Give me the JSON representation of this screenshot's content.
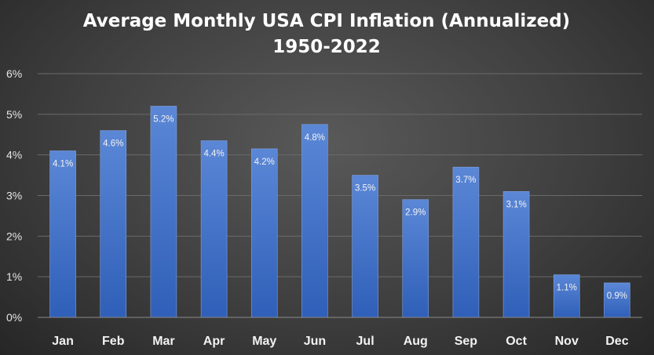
{
  "chart_data": {
    "type": "bar",
    "title": "Average Monthly USA CPI Inflation (Annualized)",
    "subtitle": "1950-2022",
    "categories": [
      "Jan",
      "Feb",
      "Mar",
      "Apr",
      "May",
      "Jun",
      "Jul",
      "Aug",
      "Sep",
      "Oct",
      "Nov",
      "Dec"
    ],
    "values": [
      4.1,
      4.6,
      5.2,
      4.35,
      4.15,
      4.75,
      3.5,
      2.9,
      3.7,
      3.1,
      1.05,
      0.85
    ],
    "data_labels": [
      "4.1%",
      "4.6%",
      "5.2%",
      "4.4%",
      "4.2%",
      "4.8%",
      "3.5%",
      "2.9%",
      "3.7%",
      "3.1%",
      "1.1%",
      "0.9%"
    ],
    "yticks": [
      "0%",
      "1%",
      "2%",
      "3%",
      "4%",
      "5%",
      "6%"
    ],
    "ylim": [
      0,
      6
    ],
    "xlabel": "",
    "ylabel": "",
    "grid": true,
    "bar_color": "#4472c4"
  }
}
